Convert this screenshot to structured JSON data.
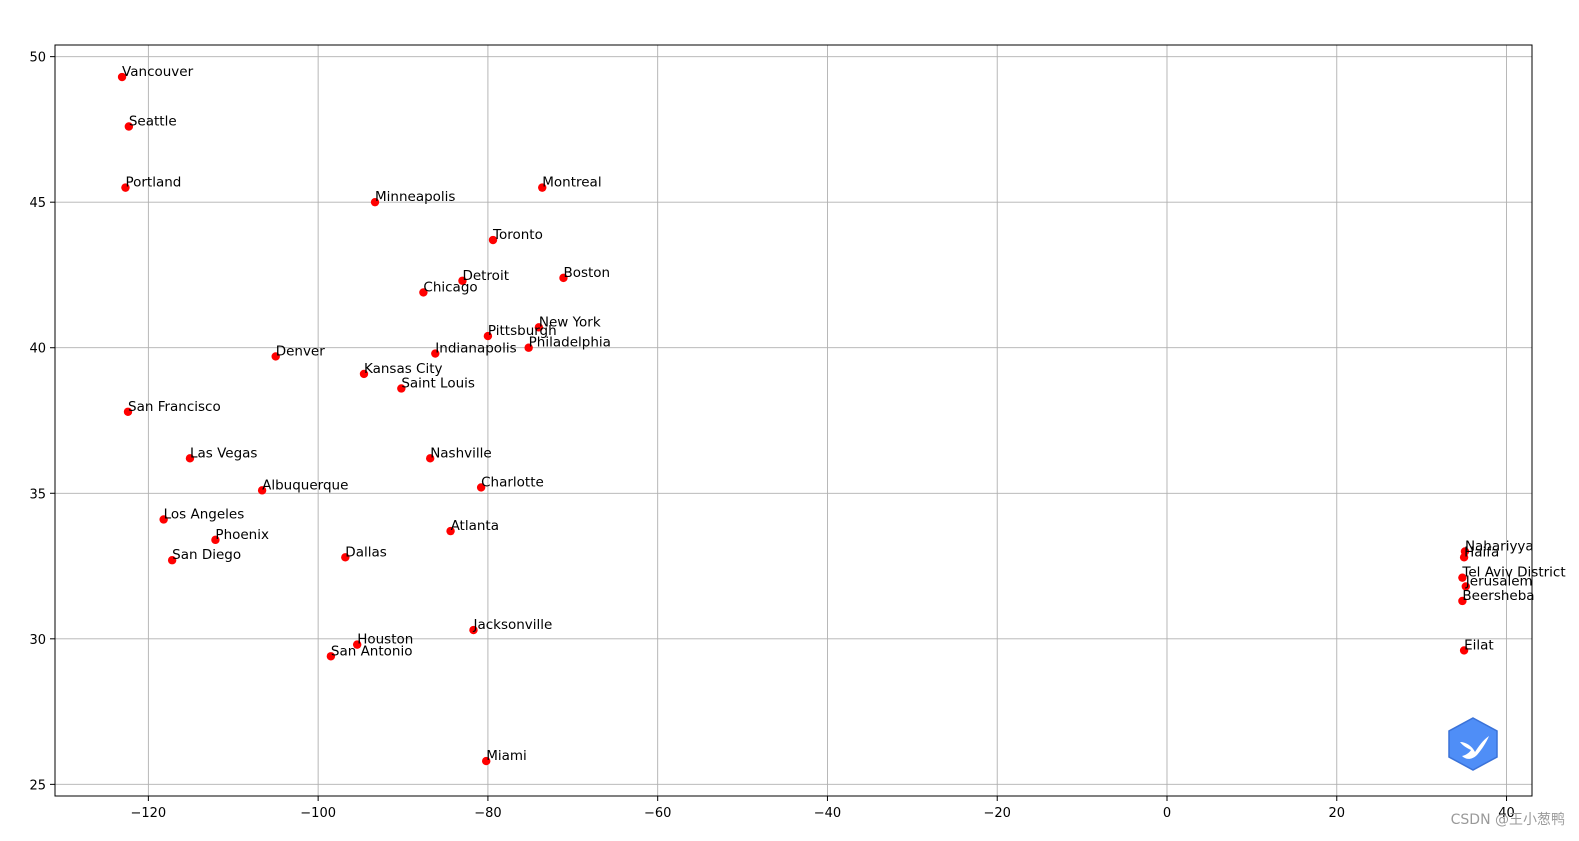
{
  "chart_data": {
    "type": "scatter",
    "title": "",
    "xlabel": "",
    "ylabel": "",
    "xlim": [
      -131,
      43
    ],
    "ylim": [
      24.6,
      50.4
    ],
    "xticks": [
      -120,
      -100,
      -80,
      -60,
      -40,
      -20,
      0,
      20,
      40
    ],
    "yticks": [
      25,
      30,
      35,
      40,
      45,
      50
    ],
    "grid": true,
    "marker_color": "#ff0000",
    "points": [
      {
        "label": "Vancouver",
        "x": -123.1,
        "y": 49.3
      },
      {
        "label": "Seattle",
        "x": -122.3,
        "y": 47.6
      },
      {
        "label": "Portland",
        "x": -122.7,
        "y": 45.5
      },
      {
        "label": "Minneapolis",
        "x": -93.3,
        "y": 45.0
      },
      {
        "label": "Montreal",
        "x": -73.6,
        "y": 45.5
      },
      {
        "label": "Toronto",
        "x": -79.4,
        "y": 43.7
      },
      {
        "label": "Detroit",
        "x": -83.0,
        "y": 42.3
      },
      {
        "label": "Boston",
        "x": -71.1,
        "y": 42.4
      },
      {
        "label": "Chicago",
        "x": -87.6,
        "y": 41.9
      },
      {
        "label": "New York",
        "x": -74.0,
        "y": 40.7
      },
      {
        "label": "Pittsburgh",
        "x": -80.0,
        "y": 40.4
      },
      {
        "label": "Philadelphia",
        "x": -75.2,
        "y": 40.0
      },
      {
        "label": "Indianapolis",
        "x": -86.2,
        "y": 39.8
      },
      {
        "label": "Denver",
        "x": -105.0,
        "y": 39.7
      },
      {
        "label": "Kansas City",
        "x": -94.6,
        "y": 39.1
      },
      {
        "label": "Saint Louis",
        "x": -90.2,
        "y": 38.6
      },
      {
        "label": "San Francisco",
        "x": -122.4,
        "y": 37.8
      },
      {
        "label": "Las Vegas",
        "x": -115.1,
        "y": 36.2
      },
      {
        "label": "Nashville",
        "x": -86.8,
        "y": 36.2
      },
      {
        "label": "Charlotte",
        "x": -80.8,
        "y": 35.2
      },
      {
        "label": "Albuquerque",
        "x": -106.6,
        "y": 35.1
      },
      {
        "label": "Los Angeles",
        "x": -118.2,
        "y": 34.1
      },
      {
        "label": "Atlanta",
        "x": -84.4,
        "y": 33.7
      },
      {
        "label": "Phoenix",
        "x": -112.1,
        "y": 33.4
      },
      {
        "label": "San Diego",
        "x": -117.2,
        "y": 32.7
      },
      {
        "label": "Dallas",
        "x": -96.8,
        "y": 32.8
      },
      {
        "label": "Jacksonville",
        "x": -81.7,
        "y": 30.3
      },
      {
        "label": "Houston",
        "x": -95.4,
        "y": 29.8
      },
      {
        "label": "San Antonio",
        "x": -98.5,
        "y": 29.4
      },
      {
        "label": "Miami",
        "x": -80.2,
        "y": 25.8
      },
      {
        "label": "Nahariyya",
        "x": 35.1,
        "y": 33.0
      },
      {
        "label": "Haifa",
        "x": 35.0,
        "y": 32.8
      },
      {
        "label": "Tel Aviv District",
        "x": 34.8,
        "y": 32.1
      },
      {
        "label": "Jerusalem",
        "x": 35.2,
        "y": 31.8
      },
      {
        "label": "Beersheba",
        "x": 34.8,
        "y": 31.3
      },
      {
        "label": "Eilat",
        "x": 35.0,
        "y": 29.6
      }
    ]
  },
  "watermark": {
    "text": "CSDN @王小葱鸭",
    "badge_icon": "bird-icon",
    "badge_color": "#4f8ef7"
  }
}
